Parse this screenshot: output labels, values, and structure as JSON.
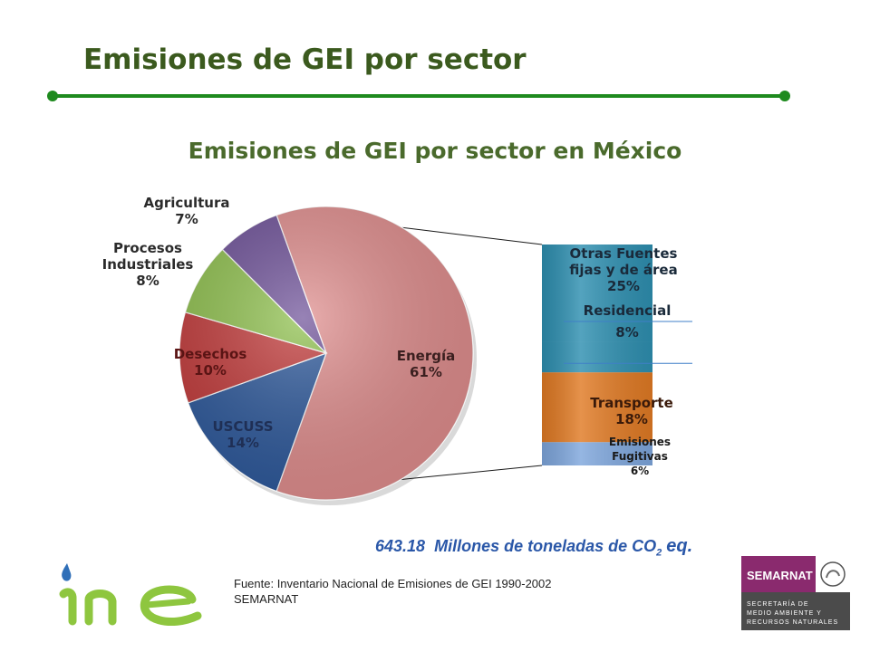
{
  "slide": {
    "title": "Emisiones de GEI por sector",
    "total_value": "643.18",
    "total_text": "Millones de toneladas de CO",
    "total_sub": "2",
    "total_eq": "eq.",
    "source_line1": "Fuente: Inventario Nacional de Emisiones de GEI 1990-2002",
    "source_line2": "SEMARNAT"
  },
  "logos": {
    "left": "ine",
    "right_name": "SEMARNAT",
    "right_lines": [
      "SECRETARÍA DE",
      "MEDIO AMBIENTE Y",
      "RECURSOS NATURALES"
    ]
  },
  "chart_data": {
    "type": "pie",
    "title": "Emisiones de GEI por sector en México",
    "slices": [
      {
        "label": "Energía",
        "pct": "61%",
        "value": 61,
        "color": "#e08e8e"
      },
      {
        "label": "USCUSS",
        "pct": "14%",
        "value": 14,
        "color": "#2f5a9c"
      },
      {
        "label": "Desechos",
        "pct": "10%",
        "value": 10,
        "color": "#c23b3b"
      },
      {
        "label": "Procesos Industriales",
        "pct": "8%",
        "value": 8,
        "color": "#8fc04e"
      },
      {
        "label": "Agricultura",
        "pct": "7%",
        "value": 7,
        "color": "#6f5299"
      }
    ],
    "breakdown": {
      "of": "Energía",
      "segments": [
        {
          "label": "Otras Fuentes fijas y de área",
          "pct": "25%",
          "value": 25,
          "color": "#2e8fb0"
        },
        {
          "label": "Residencial",
          "pct": "8%",
          "value": 8,
          "color": "#2e8fb0"
        },
        {
          "label": "Transporte",
          "pct": "18%",
          "value": 18,
          "color": "#e07a24"
        },
        {
          "label": "Emisiones Fugitivas",
          "pct": "6%",
          "value": 6,
          "color": "#7ea6dc"
        }
      ]
    }
  }
}
